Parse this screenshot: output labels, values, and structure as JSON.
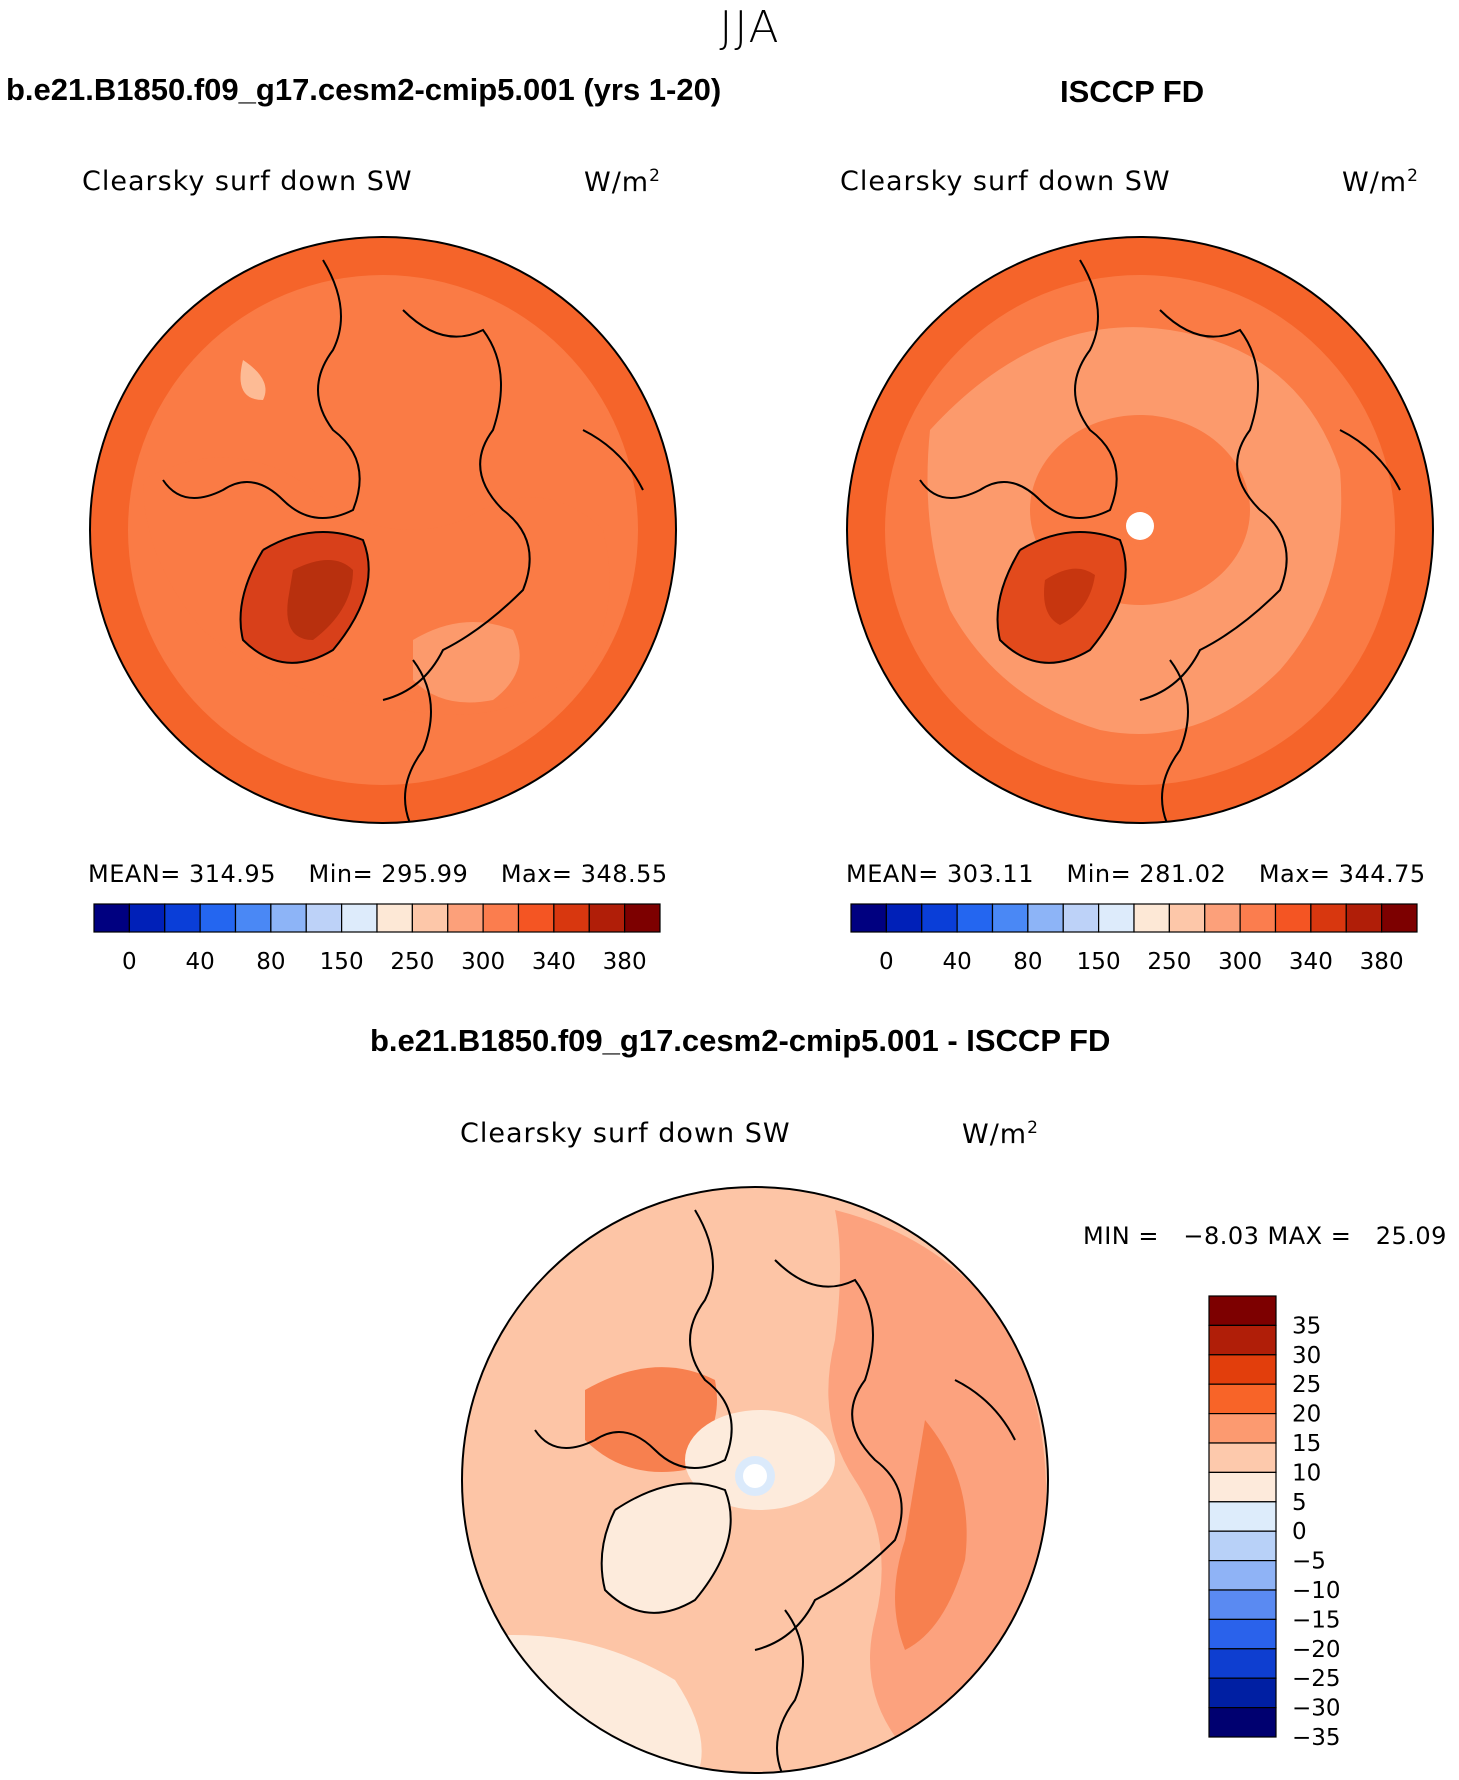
{
  "title": "JJA",
  "panels": [
    {
      "id": "model",
      "title": "b.e21.B1850.f09_g17.cesm2-cmip5.001 (yrs 1-20)",
      "variable": "Clearsky surf down SW",
      "units_base": "W/m",
      "units_exp": "2",
      "stats": {
        "mean": "MEAN= 314.95",
        "min": "Min= 295.99",
        "max": "Max= 348.55"
      }
    },
    {
      "id": "obs",
      "title": "ISCCP FD",
      "variable": "Clearsky surf down SW",
      "units_base": "W/m",
      "units_exp": "2",
      "stats": {
        "mean": "MEAN= 303.11",
        "min": "Min= 281.02",
        "max": "Max= 344.75"
      }
    }
  ],
  "diff": {
    "title": "b.e21.B1850.f09_g17.cesm2-cmip5.001 - ISCCP FD",
    "variable": "Clearsky surf down SW",
    "units_base": "W/m",
    "units_exp": "2",
    "minmax": "MIN =   −8.03 MAX =   25.09"
  },
  "colors": {
    "abs_colorbar": [
      "#000080",
      "#0020b8",
      "#0a3ed8",
      "#2466f0",
      "#4a88f5",
      "#8db4f7",
      "#bdd2f8",
      "#ddebfb",
      "#fde8d6",
      "#fdc7a9",
      "#fca07a",
      "#fb7d4e",
      "#f45523",
      "#d8370f",
      "#b01e08",
      "#7d0000"
    ],
    "diff_colorbar": [
      "#7d0000",
      "#b01e08",
      "#e23e0c",
      "#f86428",
      "#fc9a70",
      "#fdc9ac",
      "#fdeadb",
      "#ddecfb",
      "#b8d1f8",
      "#8fb3f6",
      "#5a8af2",
      "#2a62eb",
      "#0e3ed0",
      "#001fa3",
      "#000070"
    ],
    "map_model": [
      "#f5642a",
      "#fa7b45",
      "#fc9a6c",
      "#fdbb95",
      "#d8401a"
    ],
    "map_obs": [
      "#f5642a",
      "#fa7b45",
      "#fc9a6c",
      "#fdbb95",
      "#d8401a"
    ],
    "map_diff": [
      "#fdc5a6",
      "#fdebdc",
      "#fca27e",
      "#f7804f",
      "#dbeafb"
    ]
  },
  "chart_data": [
    {
      "type": "heatmap",
      "title": "b.e21.B1850.f09_g17.cesm2-cmip5.001 (yrs 1-20)",
      "variable": "Clearsky surf down SW",
      "units": "W/m2",
      "mean": 314.95,
      "min": 295.99,
      "max": 348.55,
      "colorbar_ticks": [
        "0",
        "40",
        "80",
        "150",
        "250",
        "300",
        "340",
        "380"
      ]
    },
    {
      "type": "heatmap",
      "title": "ISCCP FD",
      "variable": "Clearsky surf down SW",
      "units": "W/m2",
      "mean": 303.11,
      "min": 281.02,
      "max": 344.75,
      "colorbar_ticks": [
        "0",
        "40",
        "80",
        "150",
        "250",
        "300",
        "340",
        "380"
      ]
    },
    {
      "type": "heatmap",
      "title": "b.e21.B1850.f09_g17.cesm2-cmip5.001 - ISCCP FD",
      "variable": "Clearsky surf down SW",
      "units": "W/m2",
      "min": -8.03,
      "max": 25.09,
      "colorbar_ticks": [
        "35",
        "30",
        "25",
        "20",
        "15",
        "10",
        "5",
        "0",
        "−5",
        "−10",
        "−15",
        "−20",
        "−25",
        "−30",
        "−35"
      ]
    }
  ]
}
